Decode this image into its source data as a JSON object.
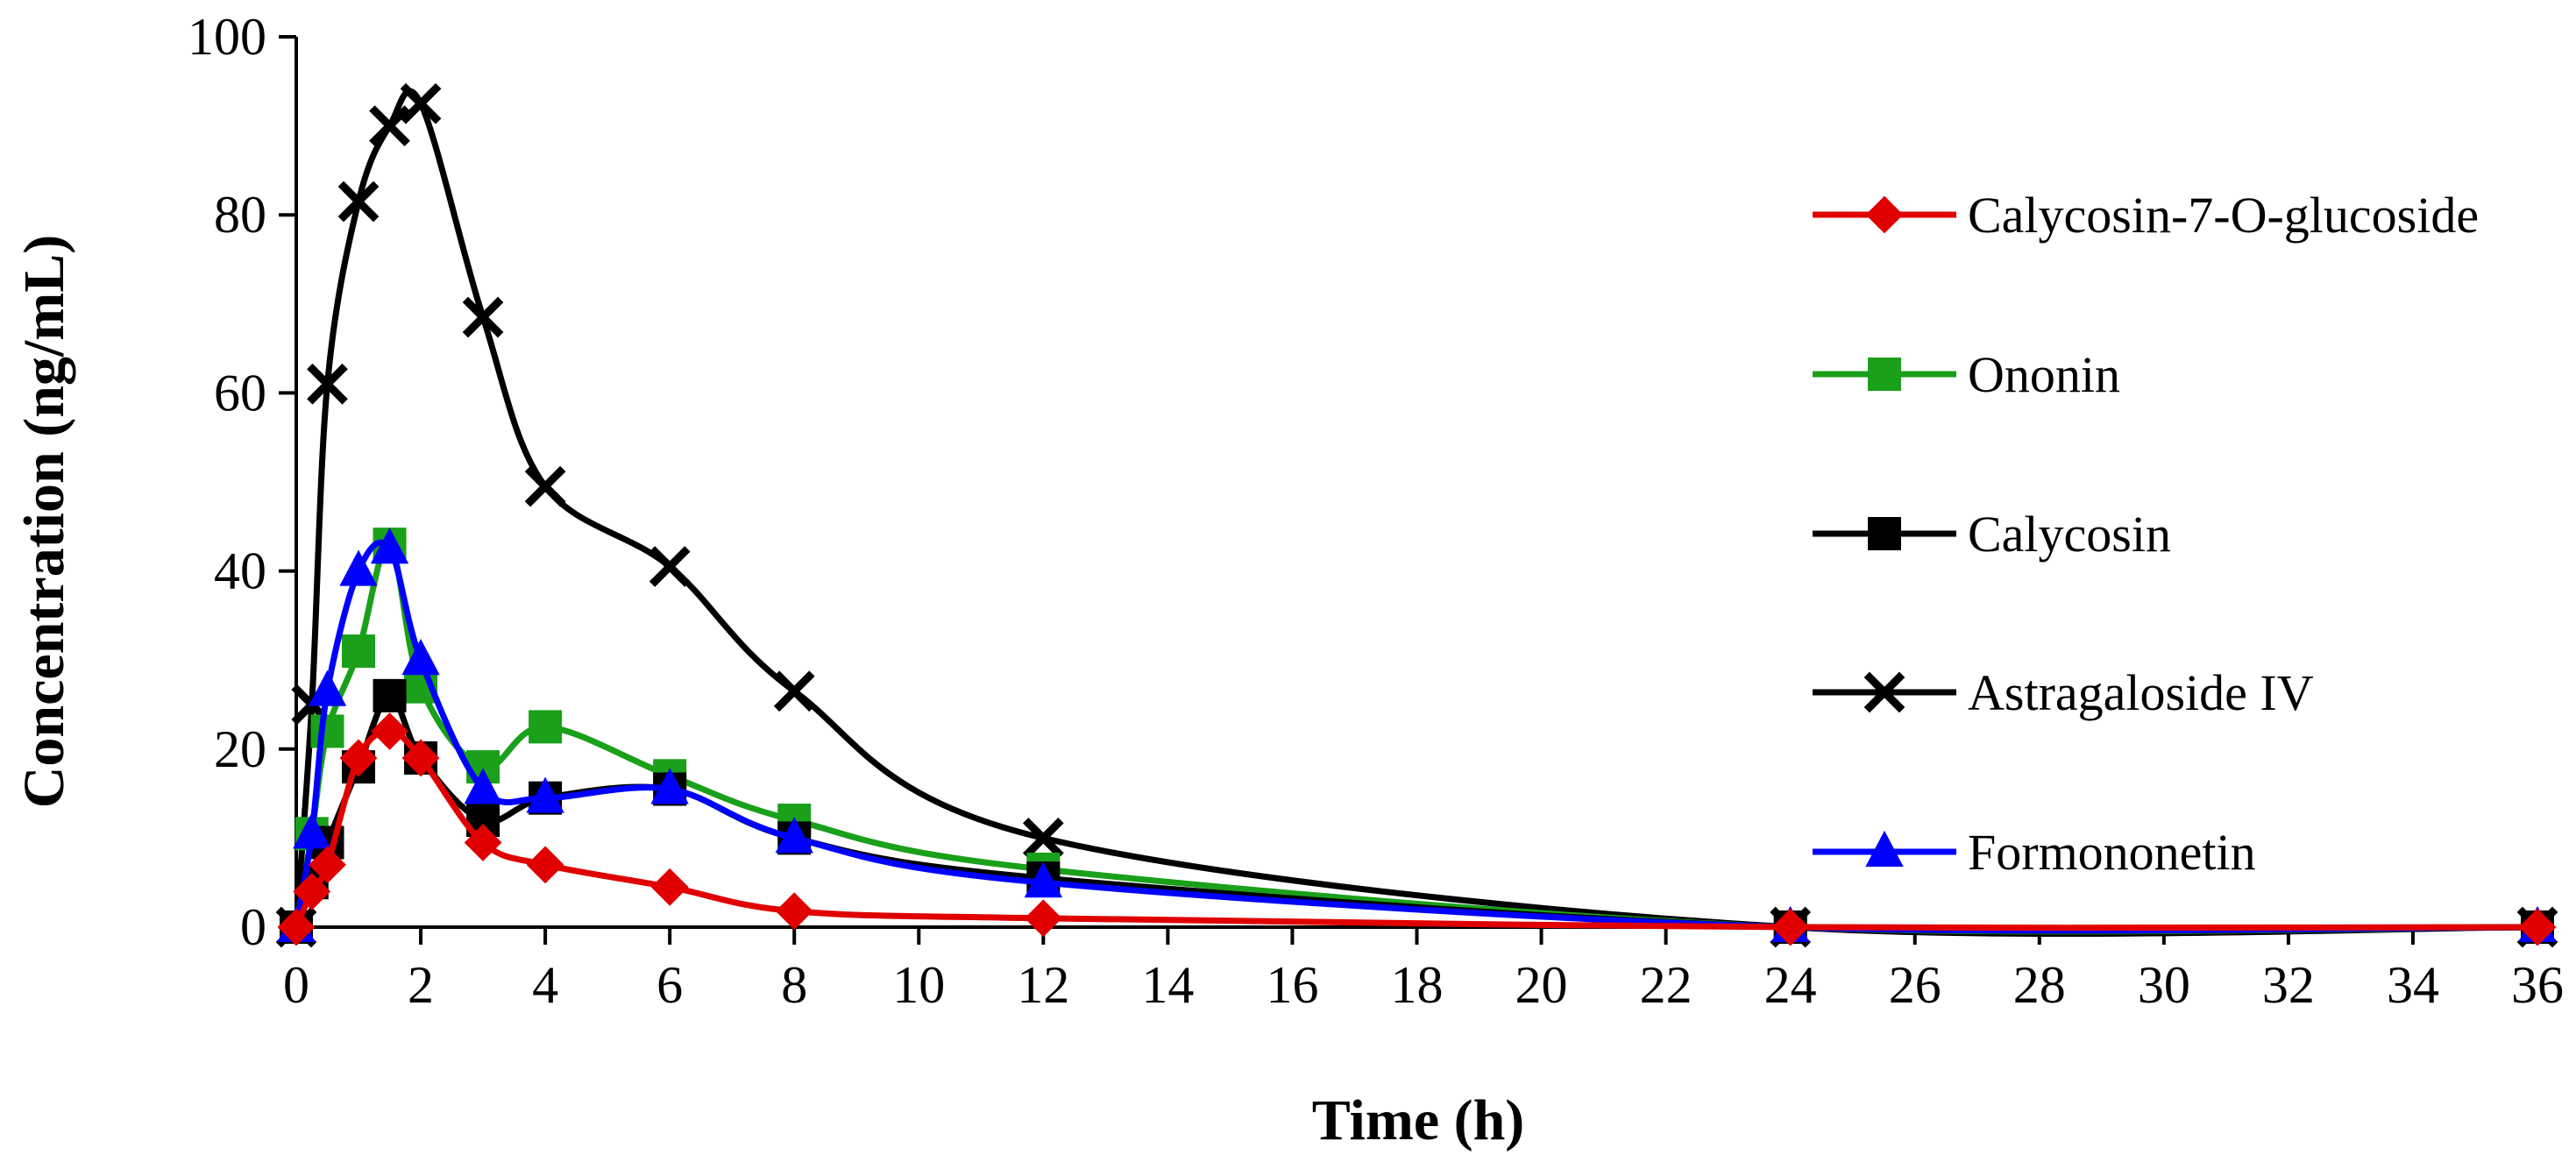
{
  "chart_data": {
    "type": "line",
    "title": "",
    "xlabel": "Time (h)",
    "ylabel": "Concentration (ng/mL)",
    "xlim": [
      0,
      36
    ],
    "ylim": [
      0,
      100
    ],
    "xticks": [
      "0",
      "2",
      "4",
      "6",
      "8",
      "10",
      "12",
      "14",
      "16",
      "18",
      "20",
      "22",
      "24",
      "26",
      "28",
      "30",
      "32",
      "34",
      "36"
    ],
    "yticks": [
      "0",
      "20",
      "40",
      "60",
      "80",
      "100"
    ],
    "legend_position": "right",
    "series": [
      {
        "name": "Calycosin-7-O-glucoside",
        "color": "#e00000",
        "marker": "diamond",
        "x": [
          0,
          0.25,
          0.5,
          1,
          1.5,
          2,
          3,
          4,
          6,
          8,
          12,
          24,
          36
        ],
        "y": [
          0,
          4,
          7,
          19,
          22,
          19,
          9.5,
          7,
          4.5,
          1.8,
          1,
          0,
          0
        ]
      },
      {
        "name": "Ononin",
        "color": "#1aa01a",
        "marker": "square",
        "x": [
          0,
          0.25,
          0.5,
          1,
          1.5,
          2,
          3,
          4,
          6,
          8,
          12,
          24,
          36
        ],
        "y": [
          0,
          10.5,
          22,
          31,
          43,
          27,
          18,
          22.5,
          17,
          12,
          6.5,
          0,
          0
        ]
      },
      {
        "name": "Calycosin",
        "color": "#000000",
        "marker": "square",
        "x": [
          0,
          0.25,
          0.5,
          1,
          1.5,
          2,
          3,
          4,
          6,
          8,
          12,
          24,
          36
        ],
        "y": [
          0,
          5,
          9.5,
          18,
          26,
          19,
          12,
          14.5,
          15.5,
          10,
          5.5,
          0,
          0
        ]
      },
      {
        "name": "Astragaloside IV",
        "color": "#000000",
        "marker": "x",
        "x": [
          0,
          0.25,
          0.5,
          1,
          1.5,
          2,
          3,
          4,
          6,
          8,
          12,
          24,
          36
        ],
        "y": [
          0,
          25,
          61,
          81.5,
          90,
          92.5,
          68.5,
          49.5,
          40.5,
          26.5,
          10,
          0,
          0
        ]
      },
      {
        "name": "Formononetin",
        "color": "#0000ff",
        "marker": "triangle",
        "x": [
          0,
          0.25,
          0.5,
          1,
          1.5,
          2,
          3,
          4,
          6,
          8,
          12,
          24,
          36
        ],
        "y": [
          0,
          10.5,
          26.5,
          40,
          42.5,
          30,
          15.5,
          14.5,
          15.5,
          10,
          5,
          0,
          0
        ]
      }
    ]
  }
}
